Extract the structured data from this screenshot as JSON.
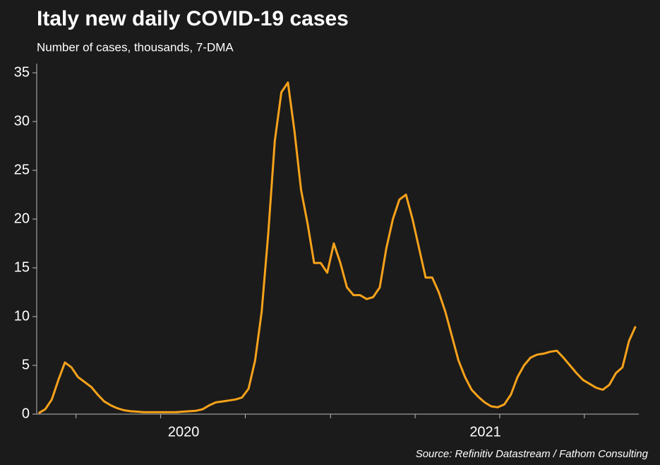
{
  "chart_data": {
    "type": "line",
    "title": "Italy new daily COVID-19 cases",
    "subtitle": "Number of cases, thousands, 7-DMA",
    "source": "Source: Refinitiv Datastream / Fathom Consulting",
    "series": [
      {
        "name": "Italy",
        "color": "#f7a21b",
        "values": [
          0.1,
          0.5,
          1.5,
          3.5,
          5.3,
          4.8,
          3.8,
          3.3,
          2.8,
          2.0,
          1.3,
          0.9,
          0.6,
          0.4,
          0.3,
          0.25,
          0.2,
          0.2,
          0.2,
          0.2,
          0.2,
          0.2,
          0.25,
          0.3,
          0.35,
          0.5,
          0.9,
          1.2,
          1.3,
          1.4,
          1.5,
          1.7,
          2.6,
          5.5,
          10.5,
          18.5,
          28,
          33,
          34,
          29,
          23,
          19.5,
          15.5,
          15.5,
          14.5,
          17.5,
          15.5,
          13,
          12.2,
          12.2,
          11.8,
          12,
          13,
          17,
          20,
          22,
          22.5,
          20,
          17,
          14,
          14,
          12.5,
          10.5,
          8,
          5.5,
          3.8,
          2.5,
          1.8,
          1.2,
          0.8,
          0.7,
          1.0,
          2.0,
          3.8,
          5.0,
          5.8,
          6.1,
          6.2,
          6.4,
          6.5,
          5.8,
          5.0,
          4.2,
          3.5,
          3.1,
          2.7,
          2.5,
          3.0,
          4.2,
          4.8,
          7.5,
          9.0
        ]
      }
    ],
    "xlim": [
      -0.3,
      91.5
    ],
    "xticks": [
      {
        "value": 22.1,
        "label": "2020"
      },
      {
        "value": 68.1,
        "label": "2021"
      }
    ],
    "xtick_marks": [
      5.7,
      18.6,
      31.5,
      44.5,
      57.4,
      70.3,
      83.2
    ],
    "ylim": [
      0,
      35
    ],
    "yticks": [
      0,
      5,
      10,
      15,
      20,
      25,
      30,
      35
    ],
    "grid": false
  }
}
